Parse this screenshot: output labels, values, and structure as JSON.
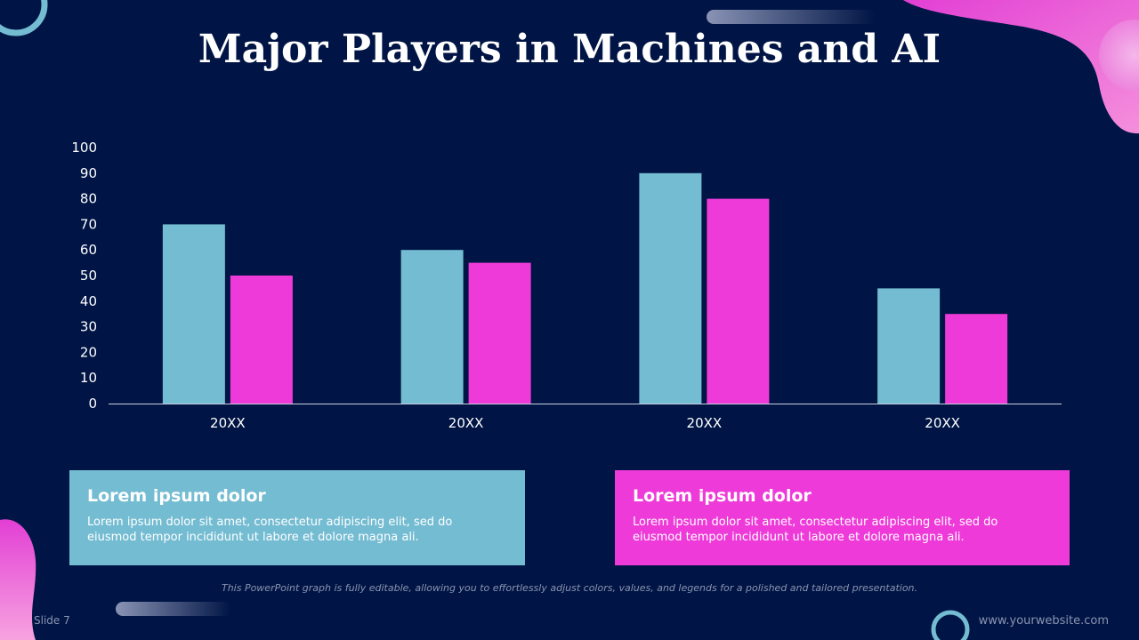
{
  "slide": {
    "title": "Major Players in Machines and AI",
    "footnote": "This PowerPoint graph is fully editable, allowing you to effortlessly adjust colors, values, and legends for a polished and tailored presentation.",
    "slide_number": "Slide 7",
    "website": "www.yourwebsite.com"
  },
  "cards": [
    {
      "title": "Lorem ipsum dolor",
      "body_line1": "Lorem ipsum dolor sit amet, consectetur adipiscing elit, sed do",
      "body_line2": "eiusmod tempor incididunt ut labore et dolore magna ali.",
      "color": "#74bcd2"
    },
    {
      "title": "Lorem ipsum dolor",
      "body_line1": "Lorem ipsum dolor sit amet, consectetur adipiscing elit, sed do",
      "body_line2": "eiusmod tempor incididunt ut labore et dolore magna ali.",
      "color": "#ee3ad8"
    }
  ],
  "colors": {
    "background": "#001545",
    "series_a": "#74bcd2",
    "series_b": "#ee3ad8",
    "text": "#ffffff",
    "muted": "#8a93b0"
  },
  "chart_data": {
    "type": "bar",
    "title": "",
    "xlabel": "",
    "ylabel": "",
    "categories": [
      "20XX",
      "20XX",
      "20XX",
      "20XX"
    ],
    "series": [
      {
        "values": [
          70,
          60,
          90,
          45
        ],
        "color": "#74bcd2"
      },
      {
        "values": [
          50,
          55,
          80,
          35
        ],
        "color": "#ee3ad8"
      }
    ],
    "ylim": [
      0,
      100
    ],
    "yticks": [
      0,
      10,
      20,
      30,
      40,
      50,
      60,
      70,
      80,
      90,
      100
    ],
    "grid": false,
    "legend": "none"
  }
}
